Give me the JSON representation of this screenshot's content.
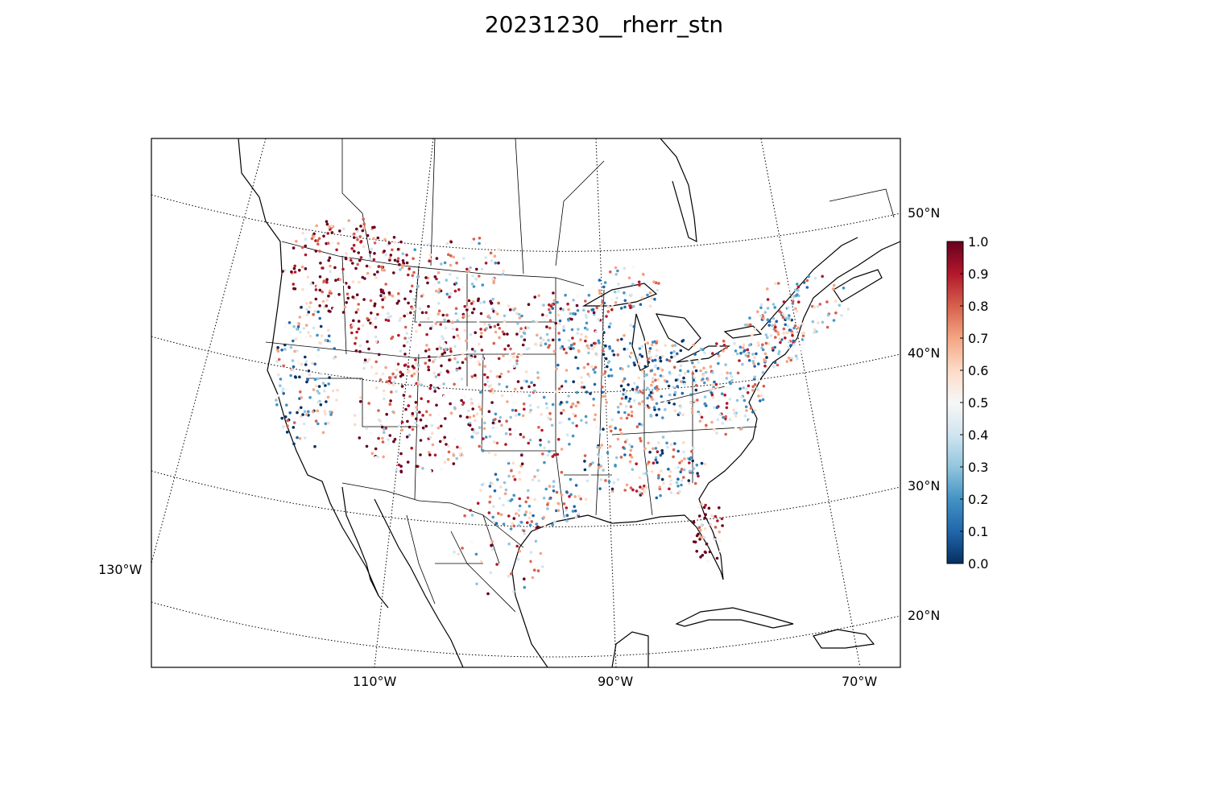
{
  "title": "20231230__rherr_stn",
  "map": {
    "projection": "lambert-conformal",
    "lat_labels": [
      "50°N",
      "40°N",
      "30°N",
      "20°N"
    ],
    "lon_labels": [
      "130°W",
      "110°W",
      "90°W",
      "70°W"
    ]
  },
  "colorbar": {
    "colormap": "RdBu_r",
    "min": 0.0,
    "max": 1.0,
    "tick_labels": [
      "0.0",
      "0.1",
      "0.2",
      "0.3",
      "0.4",
      "0.5",
      "0.6",
      "0.7",
      "0.8",
      "0.9",
      "1.0"
    ],
    "colors": [
      "#053061",
      "#2166ac",
      "#4393c3",
      "#92c5de",
      "#d1e5f0",
      "#f7f7f7",
      "#fddbc7",
      "#f4a582",
      "#d6604d",
      "#b2182b",
      "#67001f"
    ]
  }
}
